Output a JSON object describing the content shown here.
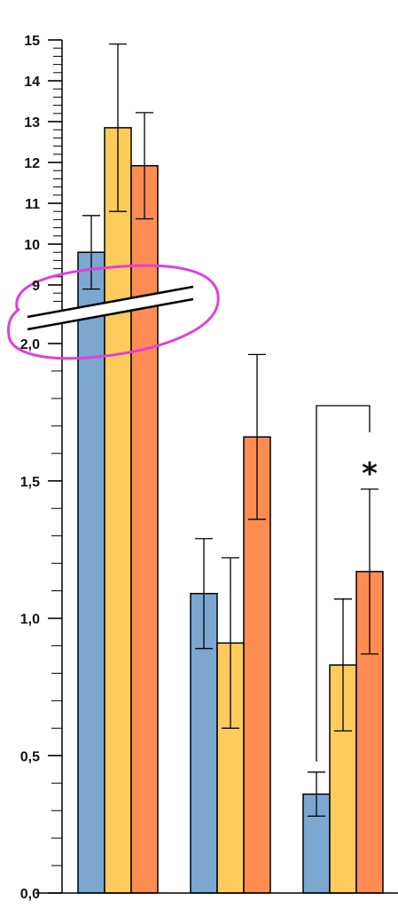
{
  "chart_data": {
    "type": "bar",
    "title": "",
    "xlabel": "",
    "ylabel": "",
    "axis_break": true,
    "upper_segment": {
      "ylim": [
        8.5,
        15
      ],
      "tick_labels": [
        "9",
        "10",
        "11",
        "12",
        "13",
        "14",
        "15"
      ],
      "tick_values": [
        9,
        10,
        11,
        12,
        13,
        14,
        15
      ]
    },
    "lower_segment": {
      "ylim": [
        0,
        2.0
      ],
      "tick_labels": [
        "0,0",
        "0,5",
        "1,0",
        "1,5",
        "2,0"
      ],
      "tick_values": [
        0,
        0.5,
        1.0,
        1.5,
        2.0
      ]
    },
    "categories": [
      "",
      "",
      ""
    ],
    "series": [
      {
        "color": "#7BA7D0",
        "values": [
          9.8,
          1.09,
          0.36
        ],
        "errors": [
          0.9,
          0.2,
          0.08
        ]
      },
      {
        "color": "#FFCC5C",
        "values": [
          12.85,
          0.91,
          0.83
        ],
        "errors": [
          2.05,
          0.31,
          0.24
        ]
      },
      {
        "color": "#FF8C52",
        "values": [
          11.92,
          1.66,
          1.17
        ],
        "errors": [
          1.3,
          0.3,
          0.3
        ]
      }
    ],
    "significance": [
      {
        "group": 2,
        "from_series": 0,
        "to_series": 2,
        "label": "*"
      }
    ],
    "annotation_color": "#E040D8"
  }
}
